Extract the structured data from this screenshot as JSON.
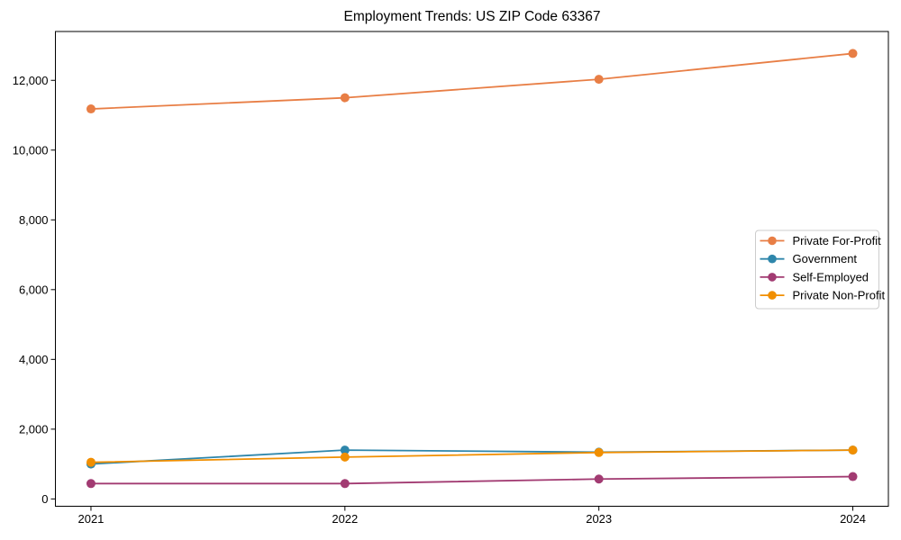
{
  "page": {
    "background": "#ffffff"
  },
  "chart_data": {
    "type": "line",
    "title": "Employment Trends: US ZIP Code 63367",
    "xlabel": "",
    "ylabel": "",
    "x": [
      2021,
      2022,
      2023,
      2024
    ],
    "x_tick_labels": [
      "2021",
      "2022",
      "2023",
      "2024"
    ],
    "y_ticks": [
      0,
      2000,
      4000,
      6000,
      8000,
      10000,
      12000
    ],
    "y_tick_labels": [
      "0",
      "2,000",
      "4,000",
      "6,000",
      "8,000",
      "10,000",
      "12,000"
    ],
    "xlim": [
      2020.86,
      2024.14
    ],
    "ylim": [
      -210,
      13400
    ],
    "grid": false,
    "axis_color": "#000000",
    "legend": {
      "position": "center-right",
      "background": "#ffffff",
      "border_color": "#cccccc"
    },
    "series": [
      {
        "name": "Private For-Profit",
        "color": "#E87E45",
        "marker": "circle",
        "values": [
          11180,
          11500,
          12030,
          12770
        ]
      },
      {
        "name": "Government",
        "color": "#2E86AB",
        "marker": "circle",
        "values": [
          1000,
          1400,
          1340,
          1400
        ]
      },
      {
        "name": "Self-Employed",
        "color": "#A23B72",
        "marker": "circle",
        "values": [
          440,
          440,
          570,
          640
        ]
      },
      {
        "name": "Private Non-Profit",
        "color": "#F18F01",
        "marker": "circle",
        "values": [
          1050,
          1200,
          1330,
          1400
        ]
      }
    ]
  }
}
